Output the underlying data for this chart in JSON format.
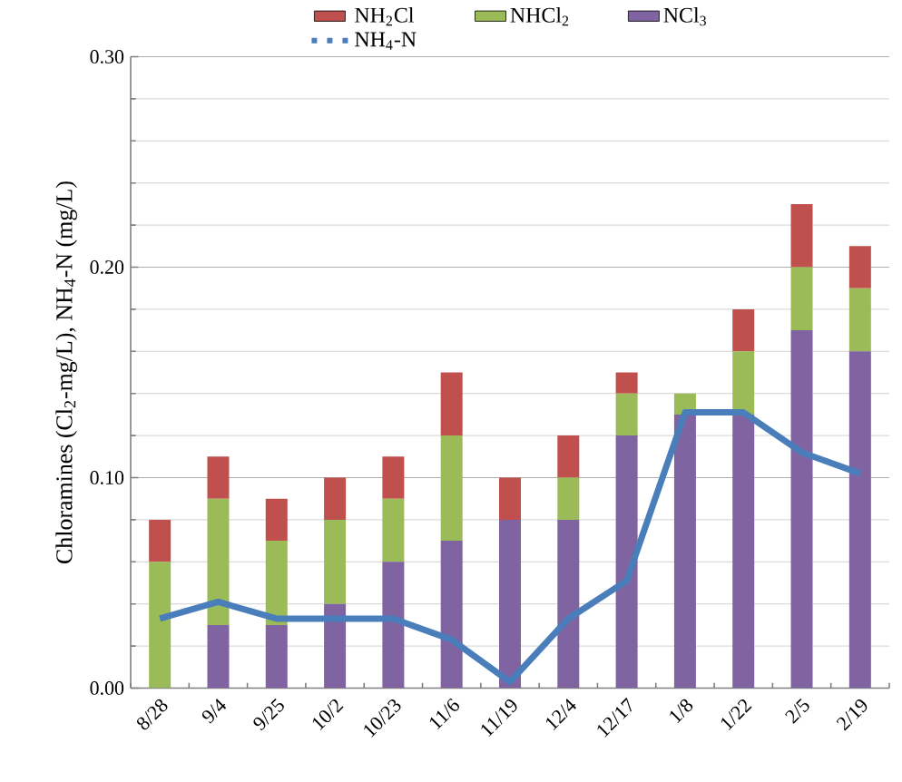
{
  "chart_data": {
    "type": "bar",
    "stacked": true,
    "ylabel": "Chloramines (Cl$_{2}$-mg/L), NH$_{4}$-N (mg/L)",
    "categories": [
      "8/28",
      "9/4",
      "9/25",
      "10/2",
      "10/23",
      "11/6",
      "11/19",
      "12/4",
      "12/17",
      "1/8",
      "1/22",
      "2/5",
      "2/19"
    ],
    "series": [
      {
        "name": "NCl$_{3}$",
        "color": "#8064a2",
        "values": [
          0,
          0.03,
          0.03,
          0.04,
          0.06,
          0.07,
          0.08,
          0.08,
          0.12,
          0.13,
          0.13,
          0.17,
          0.16
        ]
      },
      {
        "name": "NHCl$_{2}$",
        "color": "#9bbb59",
        "values": [
          0.06,
          0.06,
          0.04,
          0.04,
          0.03,
          0.05,
          0,
          0.02,
          0.02,
          0.01,
          0.03,
          0.03,
          0.03
        ]
      },
      {
        "name": "NH$_{2}$Cl",
        "color": "#c0504d",
        "values": [
          0.02,
          0.02,
          0.02,
          0.02,
          0.02,
          0.03,
          0.02,
          0.02,
          0.01,
          0,
          0.02,
          0.03,
          0.02
        ]
      },
      {
        "name": "NH$_{4}$-N",
        "type": "line",
        "color": "#4a7ebb",
        "values": [
          0.033,
          0.041,
          0.033,
          0.033,
          0.033,
          0.023,
          0.003,
          0.033,
          0.051,
          0.131,
          0.131,
          0.112,
          0.102
        ]
      }
    ],
    "ylim": [
      0,
      0.3
    ],
    "yticks": [
      {
        "value": 0,
        "label": "0.00"
      },
      {
        "value": 0.1,
        "label": "0.10"
      },
      {
        "value": 0.2,
        "label": "0.20"
      },
      {
        "value": 0.3,
        "label": "0.30"
      }
    ],
    "grid": "y",
    "legend": "top"
  }
}
